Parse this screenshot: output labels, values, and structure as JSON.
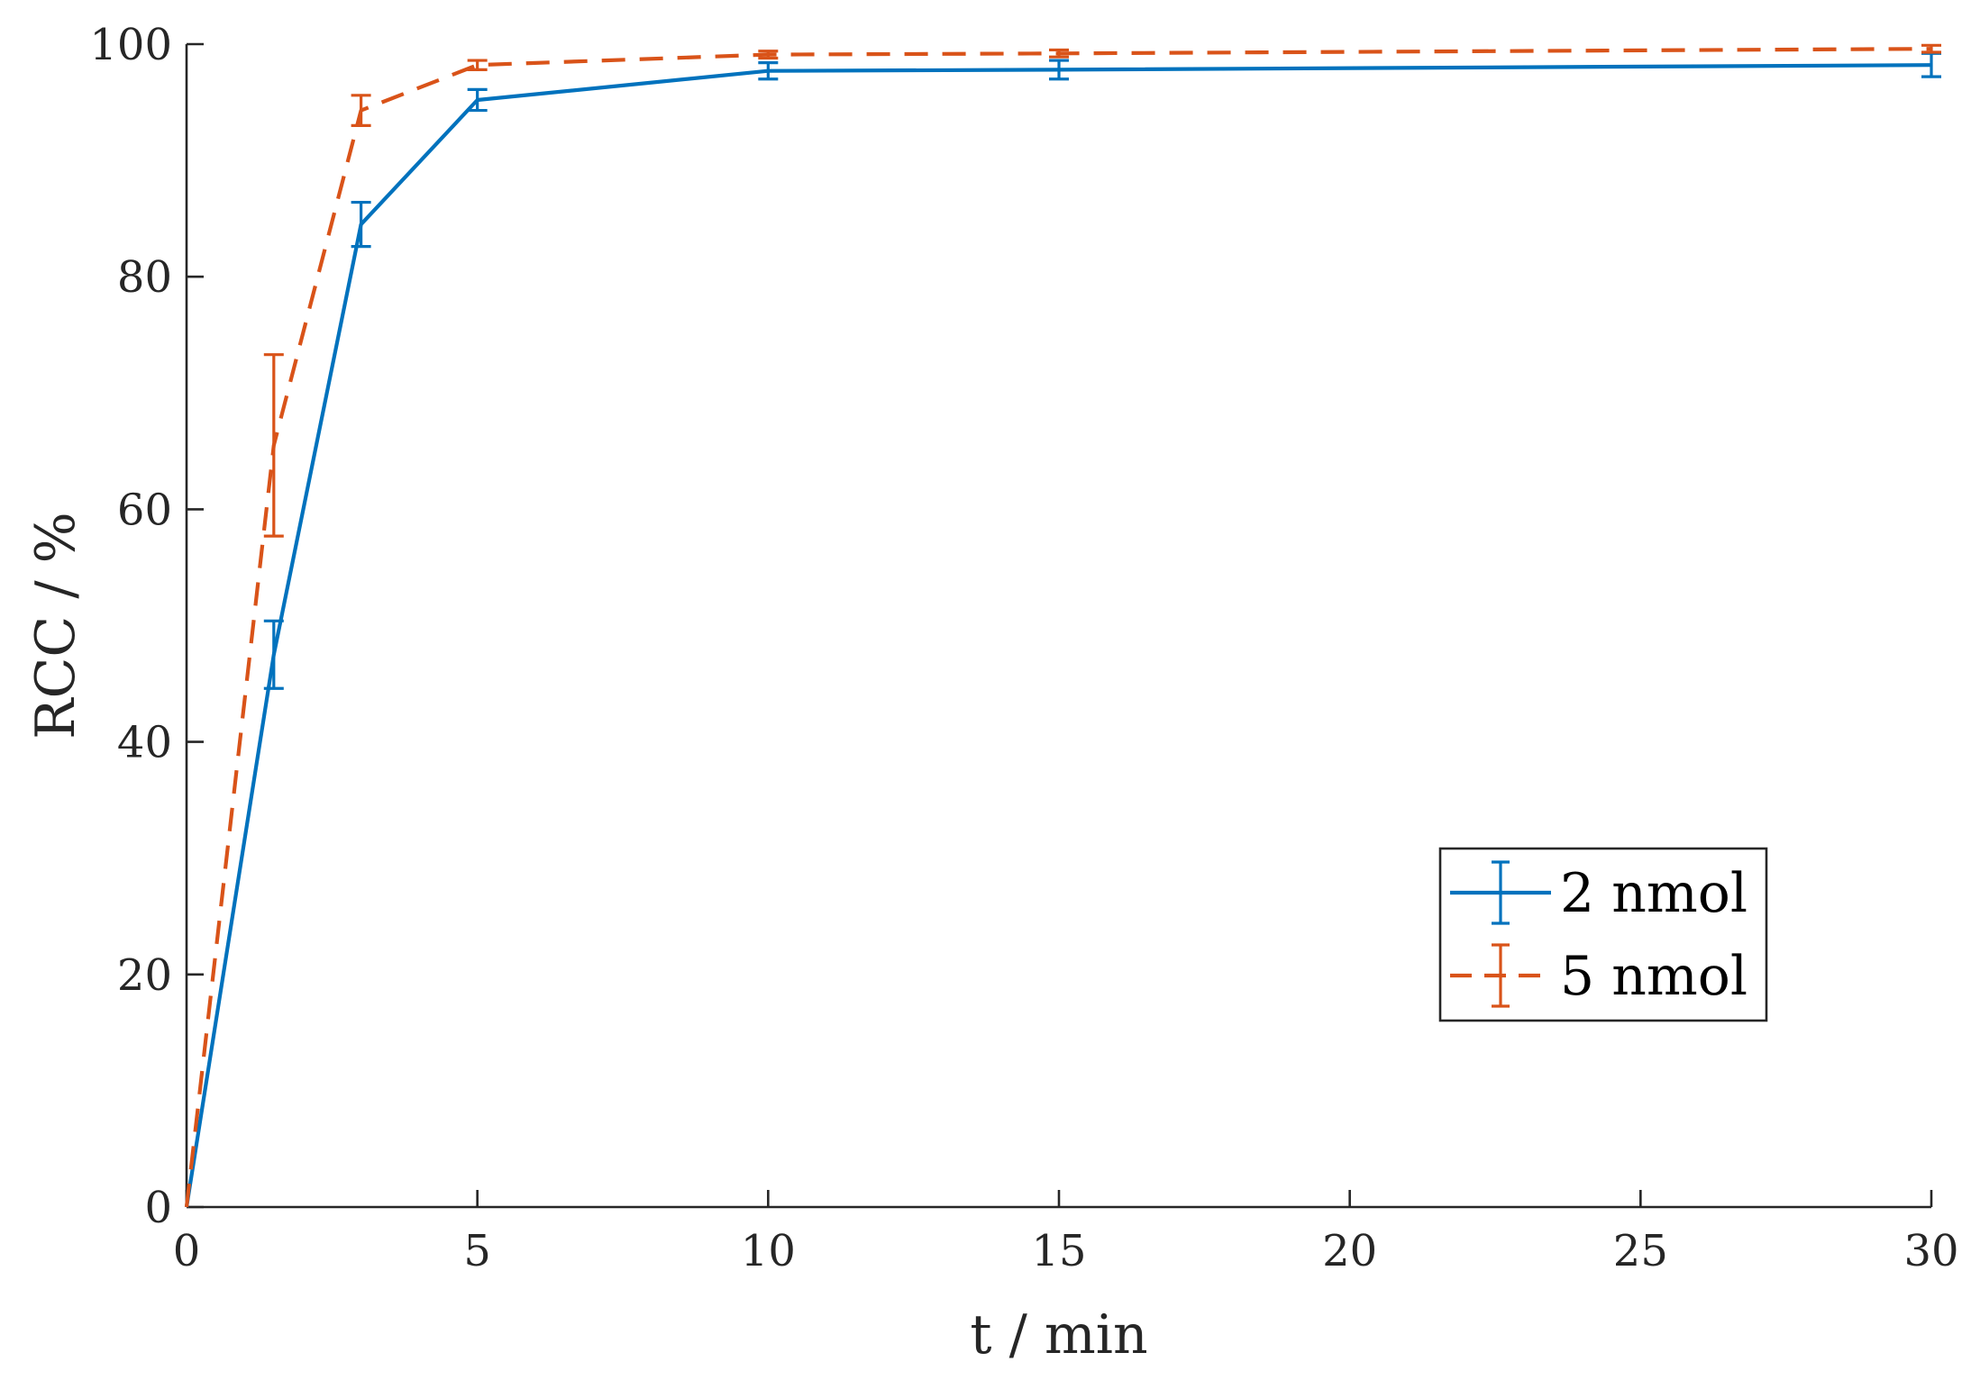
{
  "chart_data": {
    "type": "line",
    "xlabel": "t / min",
    "ylabel": "RCC / %",
    "xlim": [
      0,
      30
    ],
    "ylim": [
      0,
      100
    ],
    "xticks": [
      0,
      5,
      10,
      15,
      20,
      25,
      30
    ],
    "yticks": [
      0,
      20,
      40,
      60,
      80,
      100
    ],
    "grid": false,
    "legend_position": "lower-right",
    "series": [
      {
        "name": "2 nmol",
        "color": "#0072BD",
        "line_style": "solid",
        "x": [
          0,
          1.5,
          3,
          5,
          10,
          15,
          30
        ],
        "y": [
          0,
          47.5,
          84.5,
          95.2,
          97.7,
          97.8,
          98.2
        ],
        "error": [
          0,
          2.9,
          1.9,
          0.9,
          0.7,
          0.8,
          1.0
        ]
      },
      {
        "name": "5 nmol",
        "color": "#D95319",
        "line_style": "dashed",
        "x": [
          0,
          1.5,
          3,
          5,
          10,
          15,
          30
        ],
        "y": [
          0,
          65.5,
          94.3,
          98.2,
          99.1,
          99.2,
          99.6
        ],
        "error": [
          0,
          7.8,
          1.3,
          0.4,
          0.3,
          0.3,
          0.3
        ]
      }
    ]
  }
}
